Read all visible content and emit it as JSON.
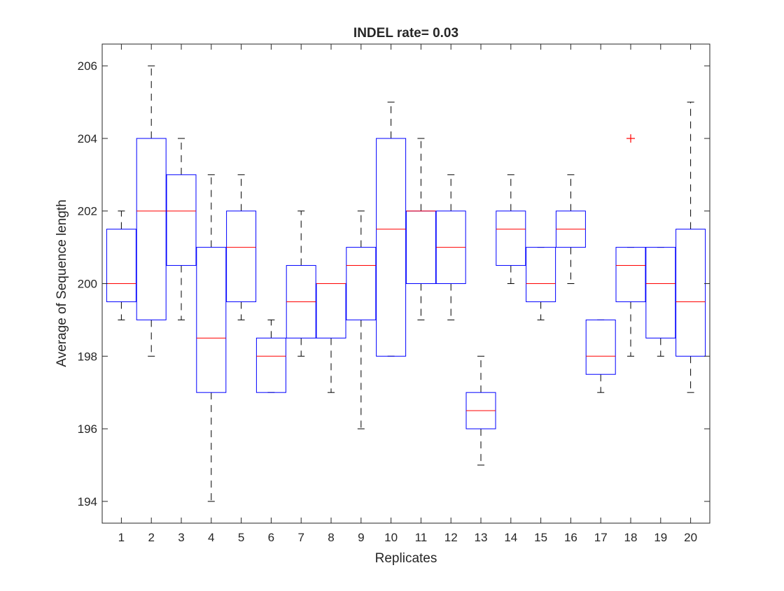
{
  "chart_data": {
    "type": "boxplot",
    "title": "INDEL rate= 0.03",
    "xlabel": "Replicates",
    "ylabel": "Average of Sequence length",
    "ylim": [
      193.4,
      206.6
    ],
    "yticks": [
      194,
      196,
      198,
      200,
      202,
      204,
      206
    ],
    "categories": [
      "1",
      "2",
      "3",
      "4",
      "5",
      "6",
      "7",
      "8",
      "9",
      "10",
      "11",
      "12",
      "13",
      "14",
      "15",
      "16",
      "17",
      "18",
      "19",
      "20"
    ],
    "boxes": [
      {
        "whisker_low": 199,
        "q1": 199.5,
        "median": 200,
        "q3": 201.5,
        "whisker_high": 202,
        "outliers": []
      },
      {
        "whisker_low": 198,
        "q1": 199,
        "median": 202,
        "q3": 204,
        "whisker_high": 206,
        "outliers": []
      },
      {
        "whisker_low": 199,
        "q1": 200.5,
        "median": 202,
        "q3": 203,
        "whisker_high": 204,
        "outliers": []
      },
      {
        "whisker_low": 194,
        "q1": 197,
        "median": 198.5,
        "q3": 201,
        "whisker_high": 203,
        "outliers": []
      },
      {
        "whisker_low": 199,
        "q1": 199.5,
        "median": 201,
        "q3": 202,
        "whisker_high": 203,
        "outliers": []
      },
      {
        "whisker_low": 197,
        "q1": 197,
        "median": 198,
        "q3": 198.5,
        "whisker_high": 199,
        "outliers": []
      },
      {
        "whisker_low": 198,
        "q1": 198.5,
        "median": 199.5,
        "q3": 200.5,
        "whisker_high": 202,
        "outliers": []
      },
      {
        "whisker_low": 197,
        "q1": 198.5,
        "median": 200,
        "q3": 200,
        "whisker_high": 200,
        "outliers": []
      },
      {
        "whisker_low": 196,
        "q1": 199,
        "median": 200.5,
        "q3": 201,
        "whisker_high": 202,
        "outliers": []
      },
      {
        "whisker_low": 198,
        "q1": 198,
        "median": 201.5,
        "q3": 204,
        "whisker_high": 205,
        "outliers": []
      },
      {
        "whisker_low": 199,
        "q1": 200,
        "median": 202,
        "q3": 202,
        "whisker_high": 204,
        "outliers": []
      },
      {
        "whisker_low": 199,
        "q1": 200,
        "median": 201,
        "q3": 202,
        "whisker_high": 203,
        "outliers": []
      },
      {
        "whisker_low": 195,
        "q1": 196,
        "median": 196.5,
        "q3": 197,
        "whisker_high": 198,
        "outliers": []
      },
      {
        "whisker_low": 200,
        "q1": 200.5,
        "median": 201.5,
        "q3": 202,
        "whisker_high": 203,
        "outliers": []
      },
      {
        "whisker_low": 199,
        "q1": 199.5,
        "median": 200,
        "q3": 201,
        "whisker_high": 201,
        "outliers": []
      },
      {
        "whisker_low": 200,
        "q1": 201,
        "median": 201.5,
        "q3": 202,
        "whisker_high": 203,
        "outliers": []
      },
      {
        "whisker_low": 197,
        "q1": 197.5,
        "median": 198,
        "q3": 199,
        "whisker_high": 199,
        "outliers": []
      },
      {
        "whisker_low": 198,
        "q1": 199.5,
        "median": 200.5,
        "q3": 201,
        "whisker_high": 201,
        "outliers": [
          204
        ]
      },
      {
        "whisker_low": 198,
        "q1": 198.5,
        "median": 200,
        "q3": 201,
        "whisker_high": 201,
        "outliers": []
      },
      {
        "whisker_low": 197,
        "q1": 198,
        "median": 199.5,
        "q3": 201.5,
        "whisker_high": 205,
        "outliers": []
      }
    ],
    "grid": false,
    "colors": {
      "box": "#0000ff",
      "median": "#ff0000",
      "whisker": "#000000",
      "outlier": "#ff0000",
      "axis": "#262626"
    }
  }
}
